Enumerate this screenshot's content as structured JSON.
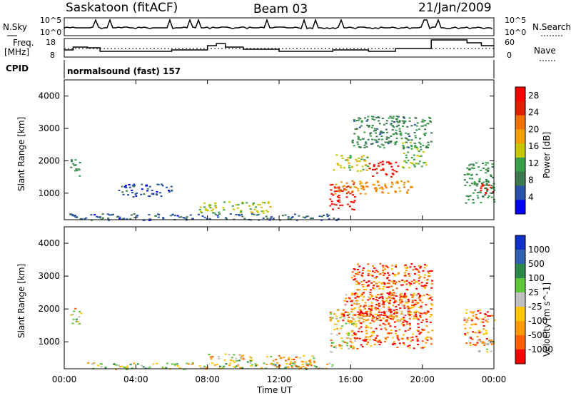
{
  "header": {
    "station": "Saskatoon (fitACF)",
    "beam": "Beam 03",
    "date": "21/Jan/2009"
  },
  "sky_panel": {
    "left_label": "N.Sky",
    "left_ticks": [
      "10^5",
      "10^0"
    ],
    "right_label": "N.Search",
    "right_ticks": [
      "10^5",
      "10^0"
    ]
  },
  "freq_panel": {
    "left_label_1": "Freq.",
    "left_label_2": "[MHz]",
    "left_ticks": [
      "18",
      "8"
    ],
    "right_label": "Nave",
    "right_ticks": [
      "60",
      "0"
    ]
  },
  "cpid": {
    "label": "CPID",
    "text": "normalsound (fast) 157"
  },
  "colors": {
    "scale": [
      "#0000ff",
      "#2a52a8",
      "#3c7a4e",
      "#3aa04a",
      "#c8c800",
      "#f0a000",
      "#f07000",
      "#e02000",
      "#ff0000"
    ],
    "velocity_scale": [
      "#ff0000",
      "#ff6000",
      "#ff9a00",
      "#ffc800",
      "#c0c0c0",
      "#5ec83a",
      "#2a8a4a",
      "#3060b0",
      "#1030c8"
    ]
  },
  "chart_data": {
    "type": "heatmap",
    "x_axis": {
      "label": "Time UT",
      "ticks": [
        "00:00",
        "04:00",
        "08:00",
        "12:00",
        "16:00",
        "20:00",
        "00:00"
      ],
      "range_hours": [
        0,
        24
      ]
    },
    "power_panel": {
      "ylabel": "Slant Range [km]",
      "yticks": [
        1000,
        2000,
        3000,
        4000
      ],
      "ylim": [
        180,
        4500
      ],
      "colorbar_label": "Power [dB]",
      "colorbar_ticks": [
        "4",
        "8",
        "12",
        "16",
        "20",
        "24",
        "28"
      ],
      "colorbar_range": [
        0,
        30
      ],
      "regions": [
        {
          "t0": 0.3,
          "t1": 0.9,
          "r0": 1550,
          "r1": 2050,
          "level": 10
        },
        {
          "t0": 0.2,
          "t1": 15.5,
          "r0": 180,
          "r1": 380,
          "level": 6
        },
        {
          "t0": 7.5,
          "t1": 11.5,
          "r0": 400,
          "r1": 750,
          "level": 14
        },
        {
          "t0": 3.0,
          "t1": 6.0,
          "r0": 900,
          "r1": 1300,
          "level": 5
        },
        {
          "t0": 14.8,
          "t1": 16.2,
          "r0": 500,
          "r1": 1300,
          "level": 27
        },
        {
          "t0": 15.0,
          "t1": 19.5,
          "r0": 1000,
          "r1": 1400,
          "level": 20
        },
        {
          "t0": 15.0,
          "t1": 17.0,
          "r0": 1700,
          "r1": 2200,
          "level": 15
        },
        {
          "t0": 17.0,
          "t1": 18.6,
          "r0": 1500,
          "r1": 2000,
          "level": 27
        },
        {
          "t0": 18.8,
          "t1": 20.2,
          "r0": 1800,
          "r1": 2600,
          "level": 13
        },
        {
          "t0": 16.0,
          "t1": 20.5,
          "r0": 2400,
          "r1": 3400,
          "level": 9
        },
        {
          "t0": 22.3,
          "t1": 24.0,
          "r0": 700,
          "r1": 2000,
          "level": 10
        },
        {
          "t0": 23.2,
          "t1": 24.0,
          "r0": 1000,
          "r1": 1300,
          "level": 27
        }
      ]
    },
    "velocity_panel": {
      "ylabel": "Slant Range [km]",
      "yticks": [
        1000,
        2000,
        3000,
        4000
      ],
      "ylim": [
        180,
        4500
      ],
      "colorbar_label": "Velocity [m s^-1]",
      "colorbar_ticks": [
        "1000",
        "500",
        "100",
        "25",
        "-25",
        "-100",
        "-500",
        "-1000"
      ],
      "regions": [
        {
          "t0": 0.3,
          "t1": 0.9,
          "r0": 1550,
          "r1": 2050,
          "level": 4
        },
        {
          "t0": 1.0,
          "t1": 15.0,
          "r0": 180,
          "r1": 380,
          "level": 5
        },
        {
          "t0": 8.0,
          "t1": 10.0,
          "r0": 400,
          "r1": 650,
          "level": 4
        },
        {
          "t0": 9.5,
          "t1": 10.5,
          "r0": 400,
          "r1": 600,
          "level": 5
        },
        {
          "t0": 11.0,
          "t1": 14.0,
          "r0": 250,
          "r1": 600,
          "level": 3
        },
        {
          "t0": 14.8,
          "t1": 16.2,
          "r0": 700,
          "r1": 2000,
          "level": 4
        },
        {
          "t0": 16.0,
          "t1": 20.5,
          "r0": 800,
          "r1": 3400,
          "level": 1
        },
        {
          "t0": 15.5,
          "t1": 20.0,
          "r0": 1600,
          "r1": 2500,
          "level": 2
        },
        {
          "t0": 22.3,
          "t1": 24.0,
          "r0": 900,
          "r1": 2000,
          "level": 2
        },
        {
          "t0": 23.0,
          "t1": 24.0,
          "r0": 700,
          "r1": 1100,
          "level": 5
        }
      ]
    }
  }
}
